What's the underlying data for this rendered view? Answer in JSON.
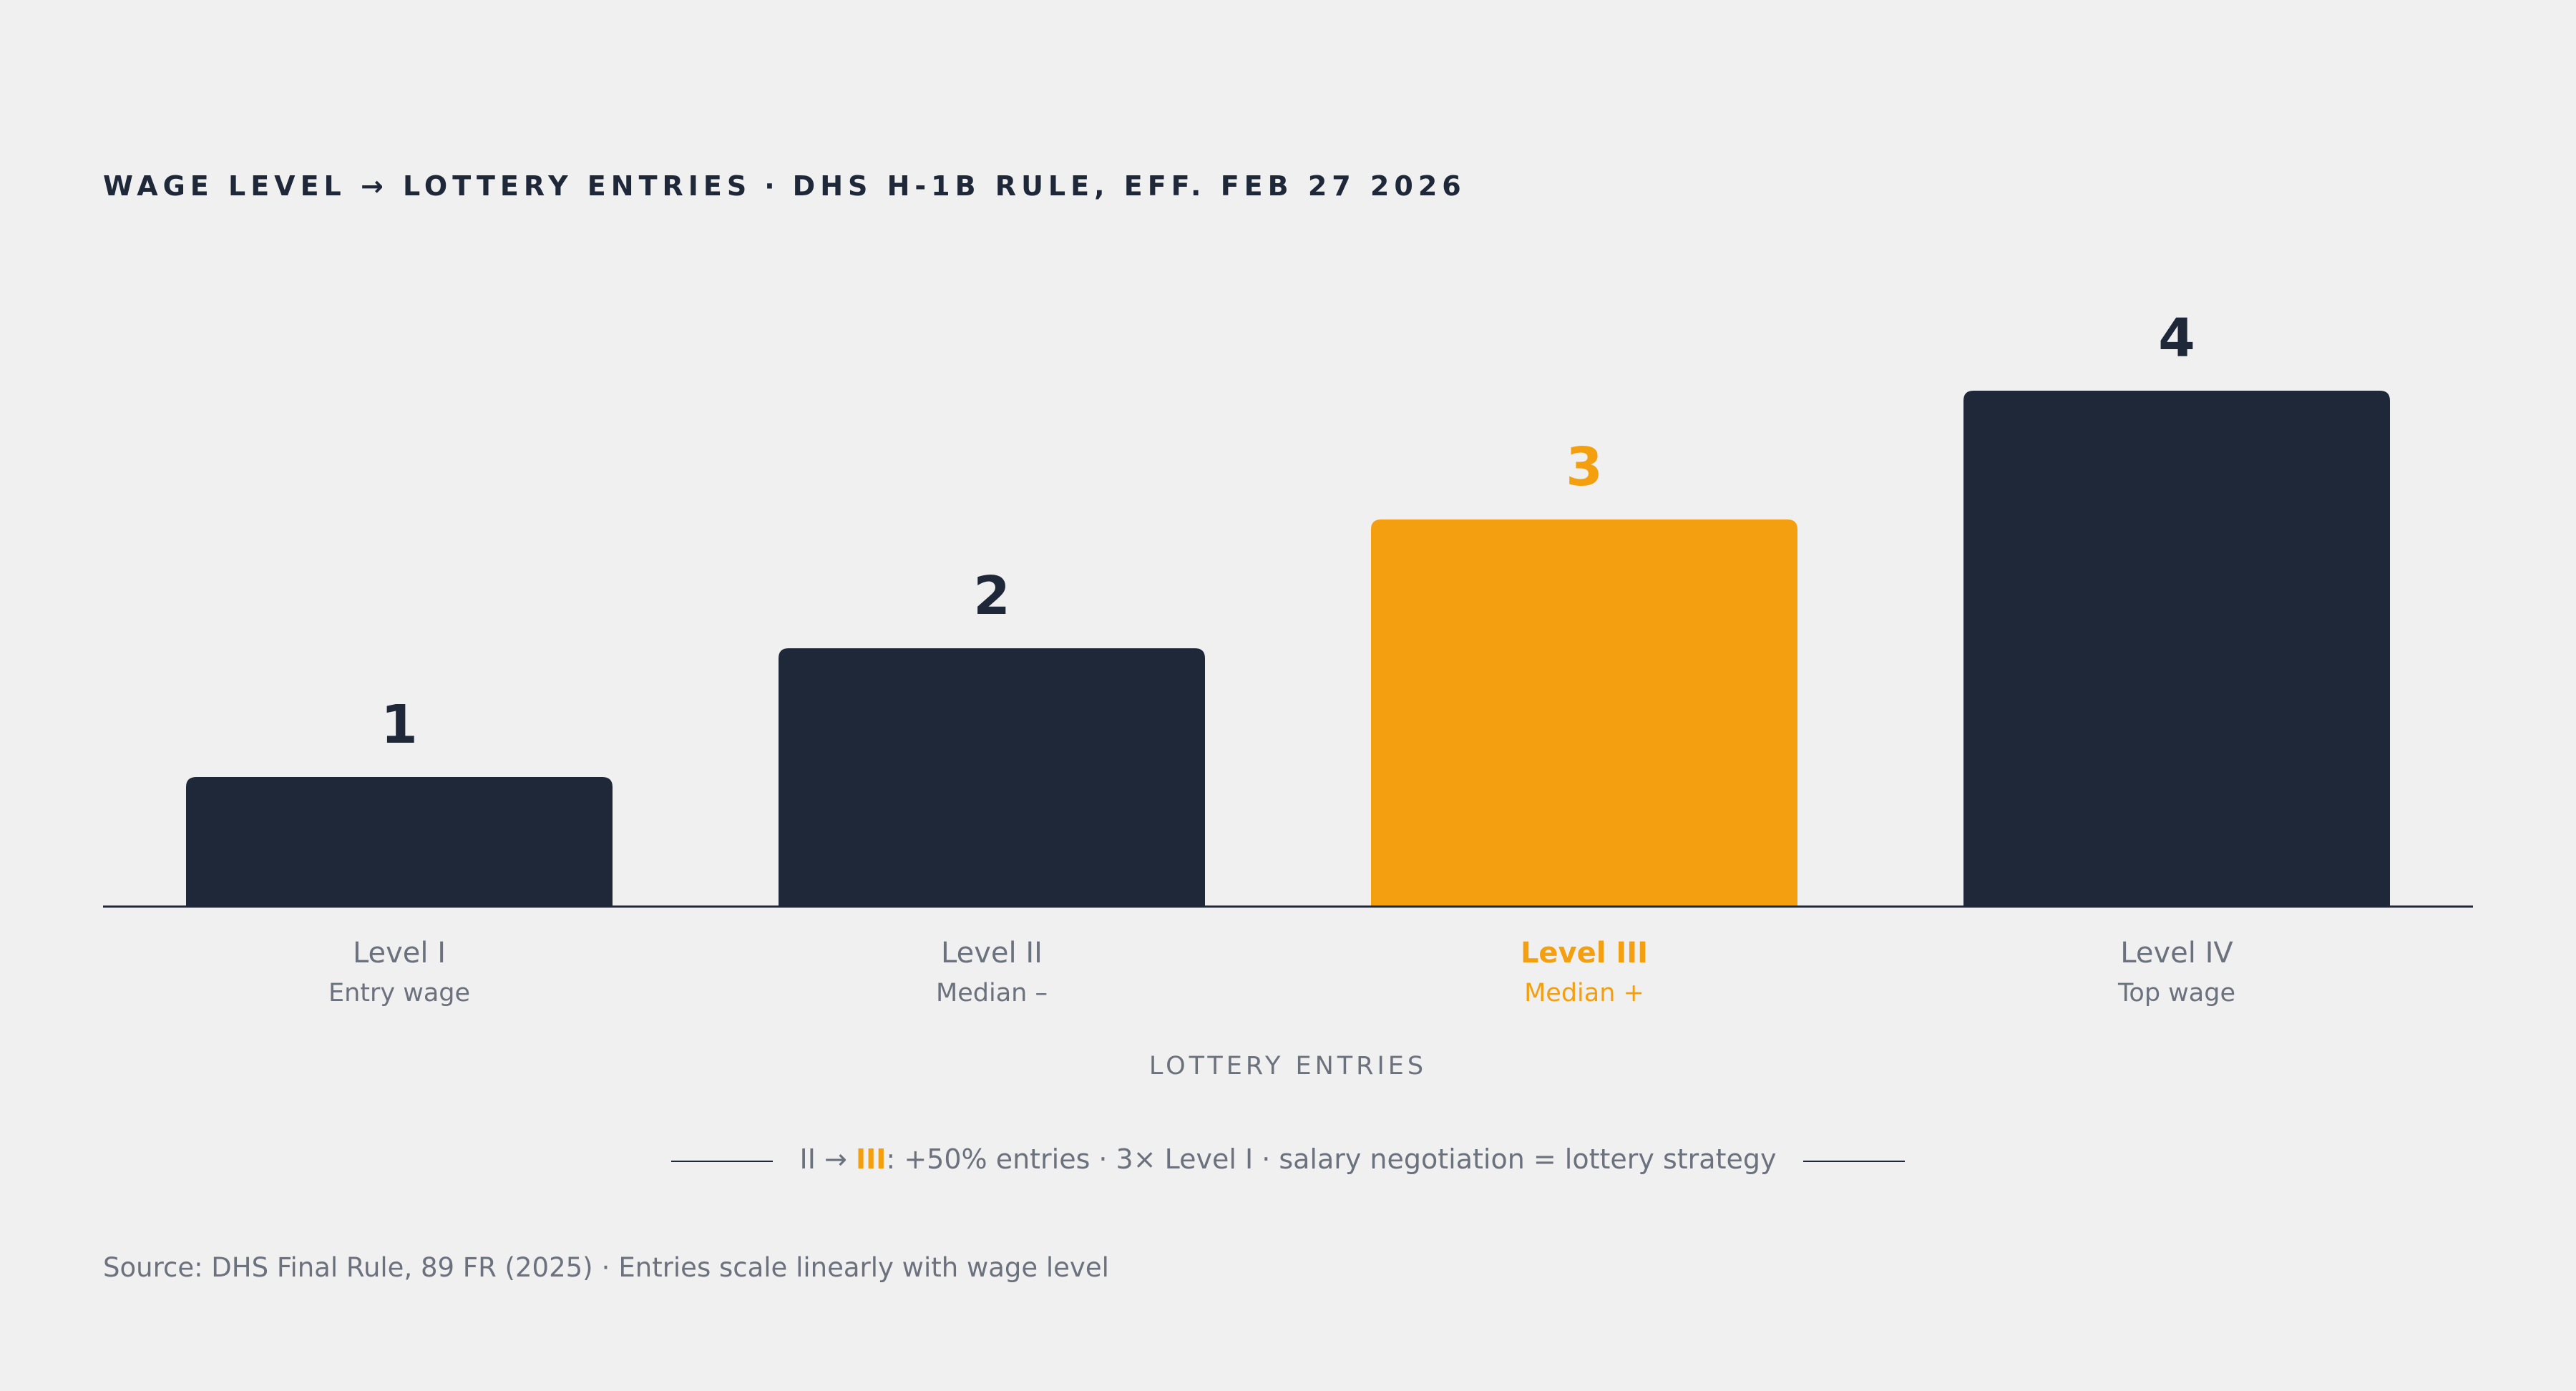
{
  "header": {
    "title_left": "WAGE LEVEL → LOTTERY ENTRIES",
    "title_sep": "·",
    "title_right": "DHS H-1B RULE, EFF. FEB 27 2026"
  },
  "chart_data": {
    "type": "bar",
    "categories": [
      "Level I",
      "Level II",
      "Level III",
      "Level IV"
    ],
    "sublabels": [
      "Entry wage",
      "Median –",
      "Median +",
      "Top wage"
    ],
    "values": [
      1,
      2,
      3,
      4
    ],
    "highlight_index": 2,
    "xlabel": "LOTTERY ENTRIES",
    "ylim": [
      0,
      4
    ],
    "grid": false,
    "colors": {
      "bar": "#1e2839",
      "highlight": "#f39f0f",
      "axis": "#1e2839",
      "category_label": "#6b717d",
      "value_label": "#1e2839"
    }
  },
  "footnote": {
    "from": "II",
    "arrow": "→",
    "to": "III",
    "colon": ":",
    "part1": "+50% entries",
    "sep": "·",
    "part2": "3× Level I",
    "part3": "salary negotiation = lottery strategy"
  },
  "source": {
    "text": "Source: DHS Final Rule, 89 FR (2025)",
    "sep": "·",
    "note": "Entries scale linearly with wage level"
  }
}
